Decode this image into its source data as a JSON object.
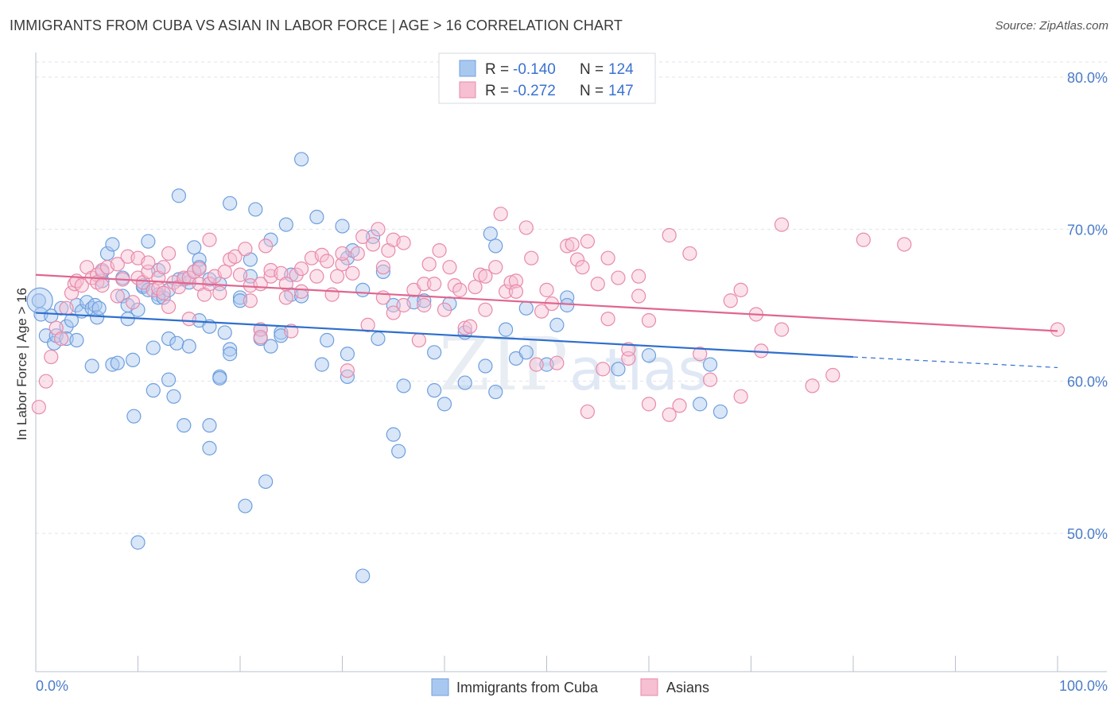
{
  "title": "IMMIGRANTS FROM CUBA VS ASIAN IN LABOR FORCE | AGE > 16 CORRELATION CHART",
  "source": "Source: ZipAtlas.com",
  "watermark": {
    "zip": "ZIP",
    "atlas": "atlas"
  },
  "colors": {
    "blue_fill": "#a9c8f0",
    "blue_stroke": "#6f9fde",
    "blue_line": "#2f6fcc",
    "pink_fill": "#f6bfd2",
    "pink_stroke": "#e88aab",
    "pink_line": "#e0668e",
    "grid": "#dfe3ea",
    "axis_text": "#4a7cc8"
  },
  "legend": {
    "rows": [
      {
        "r_label": "R = ",
        "r_value": "-0.140",
        "n_label": "N = ",
        "n_value": "124"
      },
      {
        "r_label": "R = ",
        "r_value": "-0.272",
        "n_label": "N = ",
        "n_value": "147"
      }
    ]
  },
  "bottom_legend": [
    "Immigrants from Cuba",
    "Asians"
  ],
  "chart_data": {
    "type": "scatter",
    "title": "IMMIGRANTS FROM CUBA VS ASIAN IN LABOR FORCE | AGE > 16 CORRELATION CHART",
    "xlabel": "",
    "ylabel": "In Labor Force | Age > 16",
    "xlim": [
      0,
      100
    ],
    "ylim": [
      40,
      81
    ],
    "x_tick_labels": [
      "0.0%",
      "100.0%"
    ],
    "y_ticks": [
      50,
      60,
      70,
      80
    ],
    "y_tick_labels": [
      "50.0%",
      "60.0%",
      "70.0%",
      "80.0%"
    ],
    "grid": true,
    "legend_placement": "top-center",
    "series": [
      {
        "name": "Immigrants from Cuba",
        "R": -0.14,
        "N": 124,
        "trend": {
          "x": [
            0,
            80
          ],
          "y": [
            64.5,
            61.6
          ],
          "dashed_to": [
            100,
            60.9
          ]
        },
        "points": [
          [
            0.3,
            65.3
          ],
          [
            0.5,
            64.4
          ],
          [
            1,
            63
          ],
          [
            1.5,
            64.3
          ],
          [
            1.8,
            62.5
          ],
          [
            2,
            63
          ],
          [
            2.5,
            64.8
          ],
          [
            3,
            63.6
          ],
          [
            3,
            62.8
          ],
          [
            3.5,
            64
          ],
          [
            4,
            65
          ],
          [
            4,
            62.7
          ],
          [
            4.5,
            64.6
          ],
          [
            5,
            65.2
          ],
          [
            5.5,
            64.8
          ],
          [
            5.5,
            61
          ],
          [
            5.8,
            65
          ],
          [
            6,
            64.2
          ],
          [
            6.2,
            64.8
          ],
          [
            6.5,
            66.6
          ],
          [
            6.5,
            67.2
          ],
          [
            7,
            68.4
          ],
          [
            7.5,
            69
          ],
          [
            7.5,
            61.1
          ],
          [
            8,
            61.2
          ],
          [
            8.5,
            65.6
          ],
          [
            8.5,
            66.8
          ],
          [
            9,
            64.1
          ],
          [
            9,
            65
          ],
          [
            9.5,
            61.4
          ],
          [
            9.6,
            57.7
          ],
          [
            10,
            64.7
          ],
          [
            10,
            49.4
          ],
          [
            10.5,
            66.2
          ],
          [
            10.5,
            66.3
          ],
          [
            11,
            69.2
          ],
          [
            11,
            66
          ],
          [
            11.5,
            62.2
          ],
          [
            11.5,
            59.4
          ],
          [
            12,
            65.7
          ],
          [
            12,
            67.3
          ],
          [
            12,
            65.5
          ],
          [
            12.5,
            65.5
          ],
          [
            13,
            66
          ],
          [
            13,
            62.8
          ],
          [
            13,
            60.1
          ],
          [
            13.5,
            59
          ],
          [
            13.8,
            62.5
          ],
          [
            14,
            72.2
          ],
          [
            14,
            66.7
          ],
          [
            14.5,
            66.7
          ],
          [
            14.5,
            57.1
          ],
          [
            15,
            66.5
          ],
          [
            15,
            62.3
          ],
          [
            15.5,
            68.8
          ],
          [
            15.5,
            67.2
          ],
          [
            16,
            68
          ],
          [
            16,
            67.5
          ],
          [
            16,
            64
          ],
          [
            17,
            57.1
          ],
          [
            17,
            63.6
          ],
          [
            17,
            55.6
          ],
          [
            17,
            66.7
          ],
          [
            18,
            60.3
          ],
          [
            18,
            66.4
          ],
          [
            18,
            60.2
          ],
          [
            18.5,
            63.2
          ],
          [
            19,
            62.1
          ],
          [
            19,
            71.7
          ],
          [
            19,
            61.8
          ],
          [
            20,
            65.5
          ],
          [
            20,
            65.3
          ],
          [
            20.5,
            51.8
          ],
          [
            21,
            66.9
          ],
          [
            21,
            68
          ],
          [
            21.5,
            71.3
          ],
          [
            22,
            62.8
          ],
          [
            22,
            63.4
          ],
          [
            22.5,
            53.4
          ],
          [
            23,
            62.3
          ],
          [
            23,
            69.3
          ],
          [
            24,
            63.2
          ],
          [
            24,
            63
          ],
          [
            24.5,
            70.3
          ],
          [
            25,
            65.7
          ],
          [
            25,
            67
          ],
          [
            26,
            65.6
          ],
          [
            26,
            74.6
          ],
          [
            27.5,
            70.8
          ],
          [
            28,
            61.1
          ],
          [
            28.5,
            62.7
          ],
          [
            30,
            70.2
          ],
          [
            30.5,
            68.1
          ],
          [
            30.5,
            61.8
          ],
          [
            30.5,
            60.3
          ],
          [
            31,
            68.6
          ],
          [
            32,
            66
          ],
          [
            32,
            47.2
          ],
          [
            33,
            69.5
          ],
          [
            33.5,
            62.8
          ],
          [
            34,
            67.2
          ],
          [
            35,
            65
          ],
          [
            35,
            56.5
          ],
          [
            35.5,
            55.4
          ],
          [
            36,
            59.7
          ],
          [
            37,
            65.2
          ],
          [
            38,
            65.3
          ],
          [
            39,
            59.4
          ],
          [
            39,
            61.9
          ],
          [
            40,
            58.5
          ],
          [
            40.5,
            65.1
          ],
          [
            42,
            59.9
          ],
          [
            42,
            63.2
          ],
          [
            44,
            61
          ],
          [
            44.5,
            69.7
          ],
          [
            45,
            68.9
          ],
          [
            45,
            59.3
          ],
          [
            46,
            63.4
          ],
          [
            47,
            61.5
          ],
          [
            48,
            64.8
          ],
          [
            48,
            61.9
          ],
          [
            50,
            61.1
          ],
          [
            51,
            63.7
          ],
          [
            52,
            65.5
          ],
          [
            52,
            65
          ],
          [
            57,
            60.8
          ],
          [
            60,
            61.7
          ],
          [
            65,
            58.5
          ],
          [
            66,
            61.1
          ],
          [
            67,
            58
          ]
        ]
      },
      {
        "name": "Asians",
        "R": -0.272,
        "N": 147,
        "trend": {
          "x": [
            0,
            100
          ],
          "y": [
            67,
            63.3
          ]
        },
        "points": [
          [
            0.3,
            58.3
          ],
          [
            1,
            60
          ],
          [
            1.5,
            61.6
          ],
          [
            2,
            63.5
          ],
          [
            2.5,
            62.8
          ],
          [
            3,
            64.8
          ],
          [
            3.5,
            65.8
          ],
          [
            3.8,
            66.4
          ],
          [
            4,
            66.6
          ],
          [
            4.5,
            66.3
          ],
          [
            5,
            67.5
          ],
          [
            5.5,
            66.8
          ],
          [
            6,
            67
          ],
          [
            6,
            66.5
          ],
          [
            6.5,
            66.3
          ],
          [
            6.5,
            67.3
          ],
          [
            7,
            67.5
          ],
          [
            8,
            67.7
          ],
          [
            8,
            65.6
          ],
          [
            8.5,
            66.7
          ],
          [
            9,
            68.2
          ],
          [
            9.5,
            65.2
          ],
          [
            10,
            68.1
          ],
          [
            10,
            66.8
          ],
          [
            10.5,
            66.5
          ],
          [
            11,
            67.2
          ],
          [
            11,
            67.8
          ],
          [
            11.5,
            66
          ],
          [
            12,
            66.8
          ],
          [
            12,
            66.1
          ],
          [
            12.5,
            67.5
          ],
          [
            12.5,
            65.8
          ],
          [
            13,
            64.9
          ],
          [
            13,
            68.4
          ],
          [
            13.5,
            66.5
          ],
          [
            14,
            66.2
          ],
          [
            14.5,
            66.8
          ],
          [
            15,
            64.1
          ],
          [
            15,
            66.8
          ],
          [
            15.5,
            67.2
          ],
          [
            16,
            67.4
          ],
          [
            16,
            66.4
          ],
          [
            16.5,
            65.7
          ],
          [
            17,
            66.4
          ],
          [
            17,
            69.3
          ],
          [
            17.5,
            66.9
          ],
          [
            18,
            65.8
          ],
          [
            18.5,
            67.2
          ],
          [
            19,
            68
          ],
          [
            19.5,
            68.2
          ],
          [
            20,
            67
          ],
          [
            20.5,
            68.7
          ],
          [
            21,
            65.3
          ],
          [
            21,
            66.3
          ],
          [
            22,
            63.4
          ],
          [
            22,
            66.4
          ],
          [
            22,
            62.9
          ],
          [
            22.5,
            68.9
          ],
          [
            23,
            66.9
          ],
          [
            23,
            67.3
          ],
          [
            24,
            67.1
          ],
          [
            24.5,
            66.4
          ],
          [
            24.5,
            65.5
          ],
          [
            25,
            63.3
          ],
          [
            25.5,
            67
          ],
          [
            26,
            67.4
          ],
          [
            26,
            65.9
          ],
          [
            27,
            68.1
          ],
          [
            27.5,
            66.9
          ],
          [
            28,
            68.3
          ],
          [
            28.5,
            67.9
          ],
          [
            29,
            65.7
          ],
          [
            29.5,
            66.9
          ],
          [
            30,
            67.7
          ],
          [
            30,
            68.4
          ],
          [
            30.5,
            60.7
          ],
          [
            31,
            67.1
          ],
          [
            31.5,
            68.4
          ],
          [
            32,
            69.5
          ],
          [
            32.5,
            63.7
          ],
          [
            33,
            69
          ],
          [
            33.5,
            70
          ],
          [
            34,
            67.5
          ],
          [
            34,
            65.5
          ],
          [
            34.5,
            68.6
          ],
          [
            35,
            69.3
          ],
          [
            35,
            64.5
          ],
          [
            36,
            69.1
          ],
          [
            36,
            65
          ],
          [
            37,
            66
          ],
          [
            37.5,
            62.7
          ],
          [
            38,
            66.4
          ],
          [
            38,
            65
          ],
          [
            38.5,
            67.7
          ],
          [
            39,
            66.4
          ],
          [
            39.5,
            68.6
          ],
          [
            40,
            64.7
          ],
          [
            40.5,
            67.5
          ],
          [
            41,
            66.3
          ],
          [
            41.5,
            66
          ],
          [
            42,
            63.5
          ],
          [
            42.5,
            63.6
          ],
          [
            43,
            66.2
          ],
          [
            43.5,
            67
          ],
          [
            44,
            64.7
          ],
          [
            44,
            66.9
          ],
          [
            45,
            67.5
          ],
          [
            45.5,
            71
          ],
          [
            46,
            65.9
          ],
          [
            46.5,
            66.5
          ],
          [
            47,
            66.6
          ],
          [
            47,
            65.9
          ],
          [
            48,
            70.1
          ],
          [
            48.5,
            68.1
          ],
          [
            49,
            61.1
          ],
          [
            49.5,
            64.6
          ],
          [
            50,
            66
          ],
          [
            50.5,
            65.1
          ],
          [
            51,
            61.2
          ],
          [
            52,
            68.9
          ],
          [
            52.5,
            69
          ],
          [
            53,
            68
          ],
          [
            53.5,
            67.5
          ],
          [
            54,
            69.2
          ],
          [
            54,
            58
          ],
          [
            55,
            66.4
          ],
          [
            55.5,
            60.8
          ],
          [
            56,
            64.1
          ],
          [
            56,
            68.1
          ],
          [
            57,
            66.8
          ],
          [
            58,
            61.5
          ],
          [
            58,
            62.1
          ],
          [
            59,
            65.6
          ],
          [
            59,
            66.9
          ],
          [
            60,
            64
          ],
          [
            60,
            58.5
          ],
          [
            62,
            69.6
          ],
          [
            62,
            57.8
          ],
          [
            63,
            58.4
          ],
          [
            64,
            68.4
          ],
          [
            65,
            61.8
          ],
          [
            66,
            60.1
          ],
          [
            68,
            65.3
          ],
          [
            69,
            66
          ],
          [
            69,
            59
          ],
          [
            70.5,
            64.4
          ],
          [
            71,
            62
          ],
          [
            73,
            70.3
          ],
          [
            73,
            63.4
          ],
          [
            76,
            59.7
          ],
          [
            78,
            60.4
          ],
          [
            81,
            69.3
          ],
          [
            85,
            69
          ],
          [
            100,
            63.4
          ]
        ]
      }
    ]
  }
}
